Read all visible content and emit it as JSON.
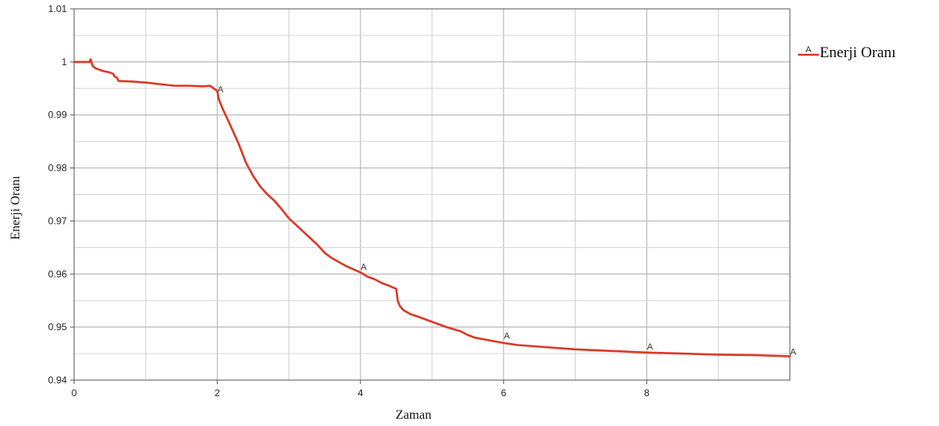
{
  "chart_data": {
    "type": "line",
    "xlabel": "Zaman",
    "ylabel": "Enerji Oranı",
    "xlim": [
      0,
      10
    ],
    "ylim": [
      0.94,
      1.01
    ],
    "xticks": [
      0,
      2,
      4,
      6,
      8
    ],
    "xtick_labels": [
      "0",
      "2",
      "4",
      "6",
      "8"
    ],
    "yticks": [
      0.94,
      0.95,
      0.96,
      0.97,
      0.98,
      0.99,
      1,
      1.01
    ],
    "ytick_labels": [
      "0.94",
      "0.95",
      "0.96",
      "0.97",
      "0.98",
      "0.99",
      "1",
      "1.01"
    ],
    "grid": true,
    "legend": {
      "position": "top-right",
      "entries": [
        {
          "marker": "A",
          "label": "Enerji Oranı"
        }
      ]
    },
    "series": [
      {
        "name": "Enerji Oranı",
        "color": "#d93a26",
        "marker_symbol": "A",
        "marker_x": [
          2,
          4,
          6,
          8,
          10
        ],
        "marker_y": [
          0.994,
          0.9605,
          0.9475,
          0.9455,
          0.9445
        ],
        "x": [
          0,
          0.22,
          0.23,
          0.26,
          0.3,
          0.4,
          0.5,
          0.55,
          0.56,
          0.6,
          0.62,
          0.8,
          1.0,
          1.2,
          1.4,
          1.6,
          1.8,
          1.9,
          1.95,
          2.0,
          2.02,
          2.08,
          2.15,
          2.2,
          2.3,
          2.4,
          2.5,
          2.6,
          2.7,
          2.8,
          2.9,
          3.0,
          3.2,
          3.4,
          3.5,
          3.6,
          3.8,
          4.0,
          4.1,
          4.2,
          4.3,
          4.4,
          4.5,
          4.52,
          4.55,
          4.6,
          4.7,
          4.8,
          5.0,
          5.2,
          5.4,
          5.5,
          5.6,
          5.8,
          6.0,
          6.2,
          6.5,
          7.0,
          7.5,
          8.0,
          8.5,
          9.0,
          9.5,
          10.0
        ],
        "y": [
          1.0,
          1.0,
          1.0005,
          0.9992,
          0.9988,
          0.9983,
          0.998,
          0.9977,
          0.9973,
          0.997,
          0.9964,
          0.9963,
          0.9961,
          0.9958,
          0.9955,
          0.9955,
          0.9954,
          0.9955,
          0.995,
          0.9945,
          0.993,
          0.991,
          0.989,
          0.9875,
          0.9845,
          0.981,
          0.9785,
          0.9765,
          0.975,
          0.9738,
          0.9722,
          0.9705,
          0.968,
          0.9655,
          0.964,
          0.963,
          0.9615,
          0.9603,
          0.9595,
          0.959,
          0.9583,
          0.9578,
          0.9572,
          0.955,
          0.954,
          0.9532,
          0.9524,
          0.952,
          0.951,
          0.95,
          0.9492,
          0.9485,
          0.948,
          0.9475,
          0.947,
          0.9466,
          0.9463,
          0.9458,
          0.9455,
          0.9452,
          0.945,
          0.9448,
          0.9447,
          0.9445
        ]
      }
    ]
  }
}
